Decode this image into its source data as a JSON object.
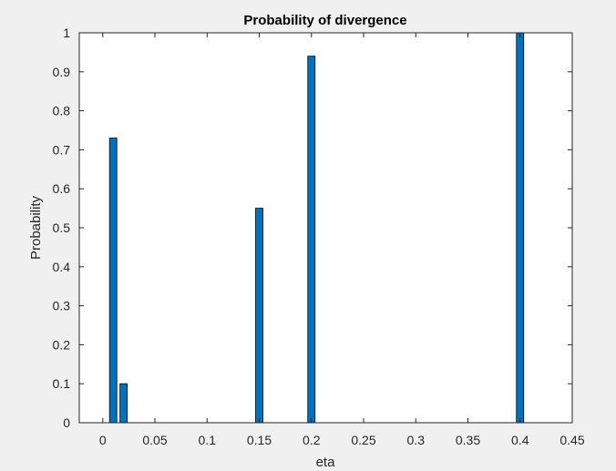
{
  "chart_data": {
    "type": "bar",
    "title": "Probability of divergence",
    "xlabel": "eta",
    "ylabel": "Probability",
    "x": [
      0.01,
      0.02,
      0.15,
      0.2,
      0.4
    ],
    "values": [
      0.73,
      0.1,
      0.55,
      0.94,
      1.0
    ],
    "xlim": [
      -0.0225,
      0.45
    ],
    "ylim": [
      0,
      1
    ],
    "xticks": [
      0,
      0.05,
      0.1,
      0.15,
      0.2,
      0.25,
      0.3,
      0.35,
      0.4,
      0.45
    ],
    "xtick_labels": [
      "0",
      "0.05",
      "0.1",
      "0.15",
      "0.2",
      "0.25",
      "0.3",
      "0.35",
      "0.4",
      "0.45"
    ],
    "yticks": [
      0,
      0.1,
      0.2,
      0.3,
      0.4,
      0.5,
      0.6,
      0.7,
      0.8,
      0.9,
      1
    ],
    "ytick_labels": [
      "0",
      "0.1",
      "0.2",
      "0.3",
      "0.4",
      "0.5",
      "0.6",
      "0.7",
      "0.8",
      "0.9",
      "1"
    ],
    "bar_color": "#0072bd",
    "bar_edge_color": "#000000",
    "background_color": "#f0f0f0",
    "axes_color": "#ffffff",
    "grid": false
  }
}
